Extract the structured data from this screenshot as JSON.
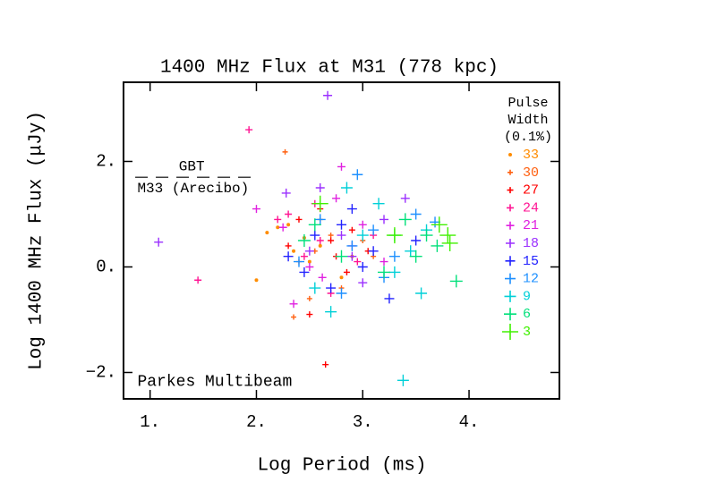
{
  "chart_data": {
    "type": "scatter",
    "title": "1400 MHz Flux at M31 (778 kpc)",
    "x_label": "Log Period (ms)",
    "y_label": "Log 1400 MHz Flux (μJy)",
    "xlim": [
      0.75,
      4.85
    ],
    "ylim": [
      -2.5,
      3.5
    ],
    "xticks": [
      {
        "value": 1,
        "label": "1."
      },
      {
        "value": 2,
        "label": "2."
      },
      {
        "value": 3,
        "label": "3."
      },
      {
        "value": 4,
        "label": "4."
      }
    ],
    "yticks": [
      {
        "value": -2,
        "label": "−2."
      },
      {
        "value": 0,
        "label": "0."
      },
      {
        "value": 2,
        "label": "2."
      }
    ],
    "legend_title": [
      "Pulse",
      "Width",
      "(0.1%)"
    ],
    "legend": "right",
    "reference_line": {
      "y": 1.7,
      "x": [
        0.86,
        1.97
      ]
    },
    "annotations": [
      {
        "text": "GBT",
        "x": 1.27,
        "y": 1.9
      },
      {
        "text": "M33 (Arecibo)",
        "x": 0.88,
        "y": 1.49
      },
      {
        "text": "Parkes Multibeam",
        "x": 0.88,
        "y": -2.17
      }
    ],
    "series": [
      {
        "name": "33",
        "color": "#ff8c00",
        "marker": "dot",
        "size": 2,
        "x": [
          2.0,
          2.1,
          2.3,
          2.5,
          2.6,
          2.8,
          2.35,
          2.45,
          2.9,
          2.2
        ],
        "y": [
          -0.25,
          0.65,
          0.8,
          0.1,
          0.4,
          -0.2,
          0.3,
          0.55,
          0.2,
          0.75
        ]
      },
      {
        "name": "30",
        "color": "#ff6010",
        "marker": "plus",
        "size": 3,
        "x": [
          2.27,
          2.35,
          2.55,
          2.7,
          2.8,
          3.0,
          2.4,
          2.6,
          2.5,
          3.1
        ],
        "y": [
          2.18,
          -0.95,
          0.3,
          0.6,
          -0.4,
          0.5,
          0.1,
          0.9,
          -0.6,
          0.2
        ]
      },
      {
        "name": "27",
        "color": "#ff0000",
        "marker": "plus",
        "size": 3.5,
        "x": [
          2.65,
          2.3,
          2.5,
          2.75,
          2.9,
          2.6,
          2.85,
          3.05,
          2.4,
          2.7
        ],
        "y": [
          -1.85,
          0.4,
          -0.9,
          0.2,
          0.7,
          1.1,
          -0.1,
          0.3,
          0.9,
          0.5
        ]
      },
      {
        "name": "24",
        "color": "#ff1493",
        "marker": "plus",
        "size": 4,
        "x": [
          1.45,
          1.93,
          2.3,
          2.45,
          2.6,
          2.7,
          2.95,
          2.2,
          2.55,
          3.1
        ],
        "y": [
          -0.25,
          2.6,
          1.0,
          0.2,
          0.5,
          -0.5,
          0.1,
          0.9,
          1.2,
          0.6
        ]
      },
      {
        "name": "21",
        "color": "#e020e0",
        "marker": "plus",
        "size": 4.5,
        "x": [
          2.0,
          2.25,
          2.62,
          2.75,
          2.9,
          3.2,
          2.5,
          2.35,
          3.0,
          2.8
        ],
        "y": [
          1.1,
          0.75,
          -0.2,
          1.3,
          0.4,
          0.1,
          0.0,
          -0.7,
          0.8,
          1.9
        ]
      },
      {
        "name": "18",
        "color": "#9b30ff",
        "marker": "plus",
        "size": 5,
        "x": [
          1.08,
          2.67,
          2.28,
          2.5,
          2.8,
          3.0,
          3.2,
          2.6,
          2.9,
          3.4
        ],
        "y": [
          0.47,
          3.25,
          1.4,
          0.3,
          0.6,
          -0.3,
          0.9,
          1.5,
          0.2,
          1.3
        ]
      },
      {
        "name": "15",
        "color": "#2222ff",
        "marker": "plus",
        "size": 5.5,
        "x": [
          2.3,
          2.55,
          2.7,
          2.9,
          3.1,
          3.25,
          2.8,
          2.45,
          3.0,
          3.5
        ],
        "y": [
          0.2,
          0.6,
          -0.4,
          1.1,
          0.3,
          -0.6,
          0.8,
          -0.1,
          0.0,
          0.5
        ]
      },
      {
        "name": "12",
        "color": "#1e90ff",
        "marker": "plus",
        "size": 6,
        "x": [
          2.95,
          2.6,
          2.8,
          3.1,
          3.3,
          3.5,
          3.68,
          2.9,
          3.2,
          2.4
        ],
        "y": [
          1.75,
          0.9,
          -0.5,
          0.7,
          0.2,
          1.0,
          0.85,
          0.4,
          -0.2,
          0.1
        ]
      },
      {
        "name": "9",
        "color": "#00d0d8",
        "marker": "plus",
        "size": 6.5,
        "x": [
          3.38,
          2.7,
          3.0,
          3.3,
          3.45,
          2.85,
          3.15,
          3.55,
          2.55,
          3.6
        ],
        "y": [
          -2.15,
          -0.85,
          0.6,
          -0.1,
          0.3,
          1.5,
          1.2,
          -0.5,
          -0.4,
          0.7
        ]
      },
      {
        "name": "6",
        "color": "#00e07a",
        "marker": "plus",
        "size": 7,
        "x": [
          3.88,
          2.45,
          3.4,
          3.5,
          3.6,
          3.7,
          3.2,
          2.55,
          3.3,
          2.8
        ],
        "y": [
          -0.27,
          0.5,
          0.9,
          0.2,
          0.6,
          0.4,
          -0.1,
          0.8,
          0.6,
          0.2
        ]
      },
      {
        "name": "3",
        "color": "#40f000",
        "marker": "plus",
        "size": 9,
        "x": [
          3.72,
          3.8,
          3.82,
          2.6,
          3.3
        ],
        "y": [
          0.8,
          0.6,
          0.45,
          1.2,
          0.6
        ]
      }
    ]
  }
}
